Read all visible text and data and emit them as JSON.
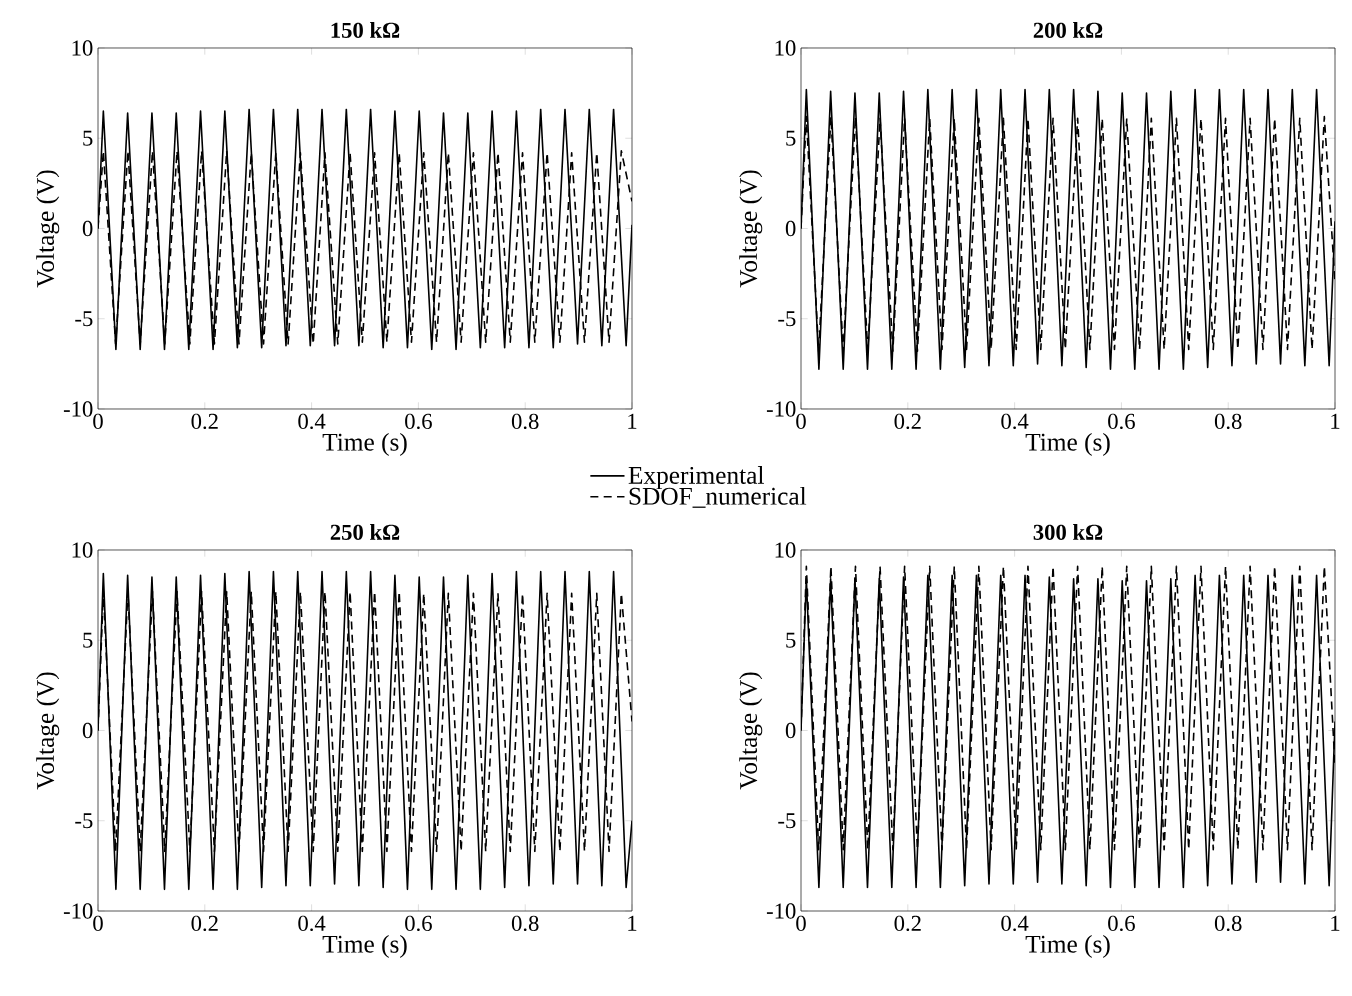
{
  "chart_data": [
    {
      "type": "line",
      "title": "150 kΩ",
      "xlabel": "Time (s)",
      "ylabel": "Voltage (V)",
      "xlim": [
        0,
        1
      ],
      "ylim": [
        -10,
        10
      ],
      "xticks": [
        0,
        0.2,
        0.4,
        0.6,
        0.8,
        1
      ],
      "yticks": [
        -10,
        -5,
        0,
        5,
        10
      ],
      "legend": "bottom right",
      "series": [
        {
          "name": "Experimental",
          "color": "#000000",
          "line_style": "solid",
          "x": [
            0,
            0.01,
            0.0335,
            0.0555,
            0.079,
            0.101,
            0.1245,
            0.1465,
            0.17,
            0.192,
            0.2155,
            0.2375,
            0.261,
            0.283,
            0.3065,
            0.3285,
            0.352,
            0.374,
            0.3975,
            0.4195,
            0.443,
            0.465,
            0.4885,
            0.5105,
            0.534,
            0.556,
            0.5795,
            0.6015,
            0.625,
            0.647,
            0.6705,
            0.6925,
            0.716,
            0.738,
            0.7615,
            0.7835,
            0.807,
            0.829,
            0.8525,
            0.8745,
            0.898,
            0.92,
            0.9435,
            0.9655,
            0.989,
            1
          ],
          "values": [
            0,
            6.5,
            -6.7,
            6.4,
            -6.7,
            6.4,
            -6.7,
            6.4,
            -6.7,
            6.5,
            -6.7,
            6.5,
            -6.6,
            6.6,
            -6.6,
            6.6,
            -6.5,
            6.6,
            -6.5,
            6.6,
            -6.5,
            6.6,
            -6.5,
            6.6,
            -6.6,
            6.5,
            -6.6,
            6.5,
            -6.7,
            6.4,
            -6.7,
            6.4,
            -6.6,
            6.5,
            -6.6,
            6.5,
            -6.6,
            6.6,
            -6.6,
            6.6,
            -6.4,
            6.6,
            -6.5,
            6.6,
            -6.5,
            0.2
          ]
        },
        {
          "name": "SDOF_numerical",
          "color": "#000000",
          "line_style": "dashed",
          "x": [
            0,
            0.01,
            0.033,
            0.056,
            0.079,
            0.102,
            0.125,
            0.148,
            0.172,
            0.194,
            0.218,
            0.241,
            0.264,
            0.287,
            0.31,
            0.333,
            0.356,
            0.379,
            0.403,
            0.425,
            0.449,
            0.472,
            0.495,
            0.518,
            0.541,
            0.564,
            0.587,
            0.61,
            0.634,
            0.656,
            0.68,
            0.703,
            0.726,
            0.749,
            0.772,
            0.795,
            0.818,
            0.841,
            0.865,
            0.887,
            0.911,
            0.934,
            0.957,
            0.98,
            1
          ],
          "values": [
            0,
            4.3,
            -6.4,
            4.3,
            -6.4,
            4.3,
            -6.4,
            4.3,
            -6.4,
            4.3,
            -6.4,
            4.3,
            -6.4,
            4.2,
            -6.4,
            4.2,
            -6.4,
            4.2,
            -6.4,
            4.2,
            -6.4,
            4.2,
            -6.3,
            4.2,
            -6.3,
            4.2,
            -6.3,
            4.2,
            -6.3,
            4.2,
            -6.3,
            4.2,
            -6.3,
            4.2,
            -6.3,
            4.2,
            -6.3,
            4.2,
            -6.3,
            4.2,
            -6.3,
            4.2,
            -6.3,
            4.3,
            1.5
          ]
        }
      ]
    },
    {
      "type": "line",
      "title": "200 kΩ",
      "xlabel": "Time (s)",
      "ylabel": "Voltage (V)",
      "xlim": [
        0,
        1
      ],
      "ylim": [
        -10,
        10
      ],
      "xticks": [
        0,
        0.2,
        0.4,
        0.6,
        0.8,
        1
      ],
      "yticks": [
        -10,
        -5,
        0,
        5,
        10
      ],
      "series": [
        {
          "color": "#000000",
          "line_style": "solid",
          "x": [
            0,
            0.01,
            0.0335,
            0.0555,
            0.079,
            0.101,
            0.1245,
            0.1465,
            0.17,
            0.192,
            0.2155,
            0.2375,
            0.261,
            0.283,
            0.3065,
            0.3285,
            0.352,
            0.374,
            0.3975,
            0.4195,
            0.443,
            0.465,
            0.4885,
            0.5105,
            0.534,
            0.556,
            0.5795,
            0.6015,
            0.625,
            0.647,
            0.6705,
            0.6925,
            0.716,
            0.738,
            0.7615,
            0.7835,
            0.807,
            0.829,
            0.8525,
            0.8745,
            0.898,
            0.92,
            0.9435,
            0.9655,
            0.989,
            1
          ],
          "values": [
            0,
            7.7,
            -7.8,
            7.6,
            -7.8,
            7.5,
            -7.8,
            7.5,
            -7.8,
            7.6,
            -7.8,
            7.7,
            -7.8,
            7.7,
            -7.7,
            7.7,
            -7.6,
            7.7,
            -7.6,
            7.7,
            -7.5,
            7.7,
            -7.6,
            7.7,
            -7.7,
            7.6,
            -7.8,
            7.5,
            -7.8,
            7.5,
            -7.8,
            7.6,
            -7.8,
            7.7,
            -7.7,
            7.7,
            -7.6,
            7.7,
            -7.5,
            7.7,
            -7.5,
            7.7,
            -7.6,
            7.7,
            -7.6,
            0.4
          ]
        },
        {
          "color": "#000000",
          "line_style": "dashed",
          "x": [
            0,
            0.01,
            0.033,
            0.056,
            0.079,
            0.102,
            0.125,
            0.148,
            0.172,
            0.194,
            0.218,
            0.241,
            0.264,
            0.287,
            0.31,
            0.333,
            0.356,
            0.379,
            0.403,
            0.425,
            0.449,
            0.472,
            0.495,
            0.518,
            0.541,
            0.564,
            0.587,
            0.61,
            0.634,
            0.656,
            0.68,
            0.703,
            0.726,
            0.749,
            0.772,
            0.795,
            0.818,
            0.841,
            0.865,
            0.887,
            0.911,
            0.934,
            0.957,
            0.98,
            1
          ],
          "values": [
            0,
            6.2,
            -6.8,
            6.2,
            -6.8,
            6.2,
            -6.8,
            6.1,
            -6.8,
            6.1,
            -6.8,
            6.1,
            -6.7,
            6.1,
            -6.7,
            6.1,
            -6.7,
            6.1,
            -6.7,
            6.1,
            -6.7,
            6.1,
            -6.7,
            6.1,
            -6.7,
            6.1,
            -6.7,
            6.1,
            -6.7,
            6.1,
            -6.7,
            6.1,
            -6.7,
            6.1,
            -6.7,
            6.1,
            -6.7,
            6.1,
            -6.7,
            6.1,
            -6.7,
            6.1,
            -6.7,
            6.2,
            -3
          ]
        }
      ]
    },
    {
      "type": "line",
      "title": "250 kΩ",
      "xlabel": "Time (s)",
      "ylabel": "Voltage (V)",
      "xlim": [
        0,
        1
      ],
      "ylim": [
        -10,
        10
      ],
      "xticks": [
        0,
        0.2,
        0.4,
        0.6,
        0.8,
        1
      ],
      "yticks": [
        -10,
        -5,
        0,
        5,
        10
      ],
      "series": [
        {
          "color": "#000000",
          "line_style": "solid",
          "x": [
            0,
            0.01,
            0.0335,
            0.0555,
            0.079,
            0.101,
            0.1245,
            0.1465,
            0.17,
            0.192,
            0.2155,
            0.2375,
            0.261,
            0.283,
            0.3065,
            0.3285,
            0.352,
            0.374,
            0.3975,
            0.4195,
            0.443,
            0.465,
            0.4885,
            0.5105,
            0.534,
            0.556,
            0.5795,
            0.6015,
            0.625,
            0.647,
            0.6705,
            0.6925,
            0.716,
            0.738,
            0.7615,
            0.7835,
            0.807,
            0.829,
            0.8525,
            0.8745,
            0.898,
            0.92,
            0.9435,
            0.9655,
            0.989,
            1
          ],
          "values": [
            0,
            8.7,
            -8.8,
            8.6,
            -8.8,
            8.5,
            -8.8,
            8.5,
            -8.8,
            8.6,
            -8.8,
            8.7,
            -8.8,
            8.8,
            -8.7,
            8.8,
            -8.6,
            8.8,
            -8.6,
            8.8,
            -8.5,
            8.8,
            -8.6,
            8.8,
            -8.7,
            8.6,
            -8.8,
            8.5,
            -8.8,
            8.5,
            -8.8,
            8.6,
            -8.8,
            8.7,
            -8.7,
            8.8,
            -8.6,
            8.8,
            -8.5,
            8.8,
            -8.5,
            8.8,
            -8.6,
            8.8,
            -8.7,
            -5
          ]
        },
        {
          "color": "#000000",
          "line_style": "dashed",
          "x": [
            0,
            0.01,
            0.033,
            0.056,
            0.079,
            0.102,
            0.125,
            0.148,
            0.172,
            0.194,
            0.218,
            0.241,
            0.264,
            0.287,
            0.31,
            0.333,
            0.356,
            0.379,
            0.403,
            0.425,
            0.449,
            0.472,
            0.495,
            0.518,
            0.541,
            0.564,
            0.587,
            0.61,
            0.634,
            0.656,
            0.68,
            0.703,
            0.726,
            0.749,
            0.772,
            0.795,
            0.818,
            0.841,
            0.865,
            0.887,
            0.911,
            0.934,
            0.957,
            0.98,
            1
          ],
          "values": [
            0,
            7.7,
            -6.7,
            7.7,
            -6.7,
            7.7,
            -6.7,
            7.7,
            -6.7,
            7.7,
            -6.7,
            7.7,
            -6.7,
            7.7,
            -6.7,
            7.7,
            -6.7,
            7.7,
            -6.7,
            7.7,
            -6.7,
            7.7,
            -6.7,
            7.7,
            -6.7,
            7.7,
            -6.7,
            7.6,
            -6.7,
            7.6,
            -6.7,
            7.6,
            -6.7,
            7.6,
            -6.7,
            7.6,
            -6.7,
            7.6,
            -6.7,
            7.6,
            -6.7,
            7.6,
            -6.7,
            7.6,
            0.5
          ]
        }
      ]
    },
    {
      "type": "line",
      "title": "300 kΩ",
      "xlabel": "Time (s)",
      "ylabel": "Voltage (V)",
      "xlim": [
        0,
        1
      ],
      "ylim": [
        -10,
        10
      ],
      "xticks": [
        0,
        0.2,
        0.4,
        0.6,
        0.8,
        1
      ],
      "yticks": [
        -10,
        -5,
        0,
        5,
        10
      ],
      "series": [
        {
          "color": "#000000",
          "line_style": "solid",
          "x": [
            0,
            0.01,
            0.0335,
            0.0555,
            0.079,
            0.101,
            0.1245,
            0.1465,
            0.17,
            0.192,
            0.2155,
            0.2375,
            0.261,
            0.283,
            0.3065,
            0.3285,
            0.352,
            0.374,
            0.3975,
            0.4195,
            0.443,
            0.465,
            0.4885,
            0.5105,
            0.534,
            0.556,
            0.5795,
            0.6015,
            0.625,
            0.647,
            0.6705,
            0.6925,
            0.716,
            0.738,
            0.7615,
            0.7835,
            0.807,
            0.829,
            0.8525,
            0.8745,
            0.898,
            0.92,
            0.9435,
            0.9655,
            0.989,
            1
          ],
          "values": [
            0,
            8.4,
            -8.7,
            8.4,
            -8.7,
            8.4,
            -8.7,
            8.4,
            -8.7,
            8.5,
            -8.7,
            8.6,
            -8.7,
            8.6,
            -8.6,
            8.6,
            -8.5,
            8.6,
            -8.5,
            8.6,
            -8.4,
            8.5,
            -8.5,
            8.4,
            -8.6,
            8.4,
            -8.7,
            8.3,
            -8.7,
            8.3,
            -8.7,
            8.4,
            -8.7,
            8.6,
            -8.6,
            8.6,
            -8.5,
            8.6,
            -8.4,
            8.6,
            -8.4,
            8.6,
            -8.5,
            8.6,
            -8.6,
            0.5
          ]
        },
        {
          "color": "#000000",
          "line_style": "dashed",
          "x": [
            0,
            0.01,
            0.033,
            0.056,
            0.079,
            0.102,
            0.125,
            0.148,
            0.172,
            0.194,
            0.218,
            0.241,
            0.264,
            0.287,
            0.31,
            0.333,
            0.356,
            0.379,
            0.403,
            0.425,
            0.449,
            0.472,
            0.495,
            0.518,
            0.541,
            0.564,
            0.587,
            0.61,
            0.634,
            0.656,
            0.68,
            0.703,
            0.726,
            0.749,
            0.772,
            0.795,
            0.818,
            0.841,
            0.865,
            0.887,
            0.911,
            0.934,
            0.957,
            0.98,
            1
          ],
          "values": [
            0,
            9.1,
            -6.6,
            9.1,
            -6.6,
            9.1,
            -6.6,
            9.1,
            -6.6,
            9.1,
            -6.6,
            9.1,
            -6.6,
            9.1,
            -6.6,
            9.1,
            -6.6,
            9.1,
            -6.6,
            9.1,
            -6.6,
            9.1,
            -6.6,
            9.1,
            -6.6,
            9.1,
            -6.6,
            9.1,
            -6.6,
            9.1,
            -6.6,
            9.1,
            -6.6,
            9.1,
            -6.6,
            9.1,
            -6.6,
            9.1,
            -6.6,
            9.1,
            -6.6,
            9.1,
            -6.6,
            9.1,
            -2
          ]
        }
      ]
    }
  ]
}
